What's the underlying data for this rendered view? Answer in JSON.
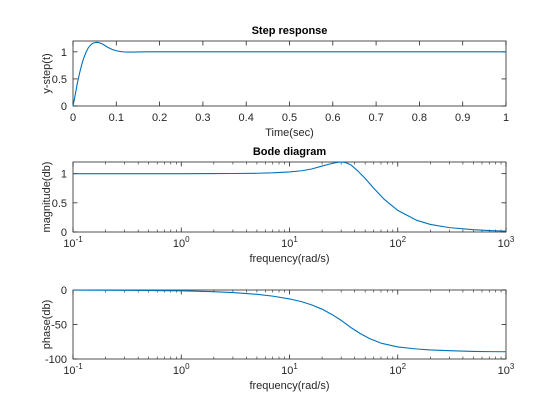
{
  "chart_data": [
    {
      "type": "line",
      "title": "Step response",
      "xlabel": "Time(sec)",
      "ylabel": "y-step(t)",
      "xlim": [
        0,
        1
      ],
      "ylim": [
        0,
        1.2
      ],
      "xscale": "linear",
      "xticks": [
        0,
        0.1,
        0.2,
        0.3,
        0.4,
        0.5,
        0.6,
        0.7,
        0.8,
        0.9,
        1
      ],
      "xtick_labels": [
        "0",
        "0.1",
        "0.2",
        "0.3",
        "0.4",
        "0.5",
        "0.6",
        "0.7",
        "0.8",
        "0.9",
        "1"
      ],
      "yticks": [
        0,
        0.5,
        1
      ],
      "ytick_labels": [
        "0",
        "0.5",
        "1"
      ],
      "grid": false,
      "color": "#0072BD",
      "series": [
        {
          "x": [
            0,
            0.005,
            0.01,
            0.015,
            0.02,
            0.025,
            0.03,
            0.035,
            0.04,
            0.045,
            0.05,
            0.055,
            0.06,
            0.065,
            0.07,
            0.075,
            0.08,
            0.09,
            0.1,
            0.11,
            0.12,
            0.13,
            0.14,
            0.15,
            0.17,
            0.2,
            0.25,
            0.3,
            0.4,
            0.5,
            0.6,
            0.7,
            0.8,
            0.9,
            1
          ],
          "y": [
            0,
            0.2,
            0.42,
            0.6,
            0.76,
            0.89,
            0.99,
            1.07,
            1.12,
            1.155,
            1.17,
            1.175,
            1.17,
            1.155,
            1.135,
            1.11,
            1.085,
            1.045,
            1.02,
            1.005,
            0.997,
            0.995,
            0.996,
            0.998,
            1.0,
            1.0,
            1.0,
            1.0,
            1.0,
            1.0,
            1.0,
            1.0,
            1.0,
            1.0,
            1.0
          ]
        }
      ]
    },
    {
      "type": "line",
      "title": "Bode diagram",
      "xlabel": "frequency(rad/s)",
      "ylabel": "magnitude(db)",
      "xlim": [
        0.1,
        1000
      ],
      "ylim": [
        0,
        1.2
      ],
      "xscale": "log",
      "xticks": [
        0.1,
        1,
        10,
        100,
        1000
      ],
      "xtick_exponents": [
        "-1",
        "0",
        "1",
        "2",
        "3"
      ],
      "yticks": [
        0,
        0.5,
        1
      ],
      "ytick_labels": [
        "0",
        "0.5",
        "1"
      ],
      "grid": false,
      "color": "#0072BD",
      "series": [
        {
          "x": [
            0.1,
            0.3,
            1,
            2,
            3,
            5,
            7,
            10,
            13,
            16,
            20,
            24,
            27,
            30,
            33,
            37,
            42,
            50,
            60,
            75,
            100,
            150,
            200,
            300,
            500,
            700,
            1000
          ],
          "y": [
            1.0,
            1.0,
            1.0,
            1.001,
            1.003,
            1.007,
            1.014,
            1.03,
            1.05,
            1.08,
            1.13,
            1.17,
            1.19,
            1.2,
            1.19,
            1.15,
            1.06,
            0.92,
            0.75,
            0.56,
            0.37,
            0.2,
            0.13,
            0.075,
            0.04,
            0.025,
            0.015
          ]
        }
      ]
    },
    {
      "type": "line",
      "title": "",
      "xlabel": "frequency(rad/s)",
      "ylabel": "phase(db)",
      "xlim": [
        0.1,
        1000
      ],
      "ylim": [
        -100,
        0
      ],
      "xscale": "log",
      "xticks": [
        0.1,
        1,
        10,
        100,
        1000
      ],
      "xtick_exponents": [
        "-1",
        "0",
        "1",
        "2",
        "3"
      ],
      "yticks": [
        -100,
        -50,
        0
      ],
      "ytick_labels": [
        "-100",
        "-50",
        "0"
      ],
      "grid": false,
      "color": "#0072BD",
      "series": [
        {
          "x": [
            0.1,
            0.3,
            1,
            2,
            3,
            5,
            7,
            10,
            13,
            16,
            20,
            25,
            30,
            37,
            45,
            55,
            70,
            100,
            150,
            200,
            300,
            500,
            700,
            1000
          ],
          "y": [
            -0.1,
            -0.4,
            -1.2,
            -2.5,
            -3.7,
            -6.3,
            -8.9,
            -12.9,
            -17,
            -21.5,
            -27.8,
            -36,
            -44,
            -54.5,
            -63,
            -70.5,
            -77,
            -82.5,
            -85.5,
            -86.8,
            -88,
            -89,
            -89.3,
            -89.5
          ]
        }
      ]
    }
  ]
}
